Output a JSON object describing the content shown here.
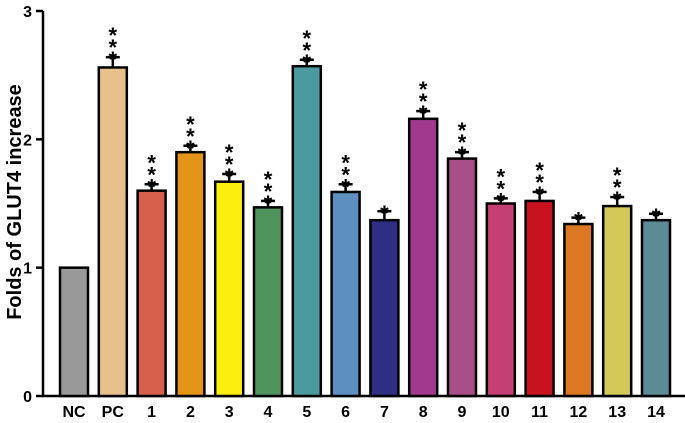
{
  "chart_data": {
    "type": "bar",
    "title": "",
    "xlabel": "",
    "ylabel": "Folds of GLUT4 increase",
    "ylim": [
      0,
      3
    ],
    "yticks": [
      "0",
      "1",
      "2",
      "3"
    ],
    "grid": false,
    "categories": [
      "NC",
      "PC",
      "1",
      "2",
      "3",
      "4",
      "5",
      "6",
      "7",
      "8",
      "9",
      "10",
      "11",
      "12",
      "13",
      "14"
    ],
    "values": [
      1.0,
      2.56,
      1.6,
      1.9,
      1.67,
      1.47,
      2.57,
      1.59,
      1.37,
      2.16,
      1.85,
      1.5,
      1.52,
      1.34,
      1.48,
      1.37
    ],
    "errors": [
      0.0,
      0.08,
      0.05,
      0.05,
      0.06,
      0.05,
      0.05,
      0.06,
      0.07,
      0.06,
      0.05,
      0.04,
      0.07,
      0.05,
      0.07,
      0.05
    ],
    "significance": [
      "",
      "***",
      "***",
      "***",
      "***",
      "***",
      "***",
      "***",
      "*",
      "***",
      "***",
      "***",
      "***",
      "*",
      "***",
      "*"
    ],
    "colors": [
      "#999999",
      "#e8c08c",
      "#d6604b",
      "#e39419",
      "#fcee0f",
      "#4f935d",
      "#4b9aa0",
      "#5d8fc1",
      "#2e2e85",
      "#a13a8e",
      "#a84f8a",
      "#c53f75",
      "#c9121f",
      "#dc7722",
      "#d4c858",
      "#5c8b95"
    ]
  }
}
